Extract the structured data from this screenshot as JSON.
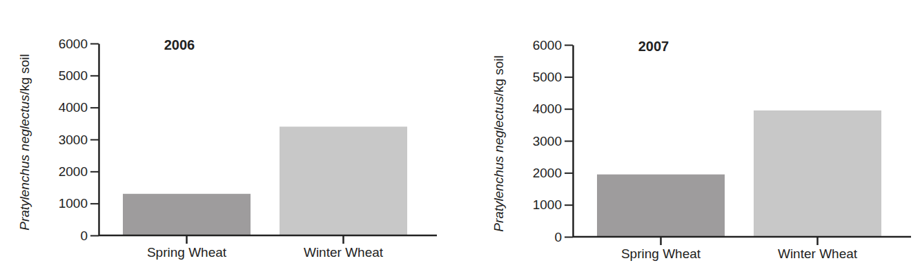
{
  "chart_data": [
    {
      "type": "bar",
      "title": "2006",
      "y_label": "Pratylenchus neglectus/kg soil",
      "categories": [
        "Spring Wheat",
        "Winter Wheat"
      ],
      "values": [
        1300,
        3400
      ],
      "colors": [
        "#9e9c9d",
        "#c8c8c8"
      ],
      "ylim": [
        0,
        6000
      ],
      "yticks": [
        0,
        1000,
        2000,
        3000,
        4000,
        5000,
        6000
      ]
    },
    {
      "type": "bar",
      "title": "2007",
      "y_label": "Pratylenchus neglectus/kg soil",
      "categories": [
        "Spring Wheat",
        "Winter Wheat"
      ],
      "values": [
        1950,
        3950
      ],
      "colors": [
        "#9e9c9d",
        "#c8c8c8"
      ],
      "ylim": [
        0,
        6000
      ],
      "yticks": [
        0,
        1000,
        2000,
        3000,
        4000,
        5000,
        6000
      ]
    }
  ]
}
